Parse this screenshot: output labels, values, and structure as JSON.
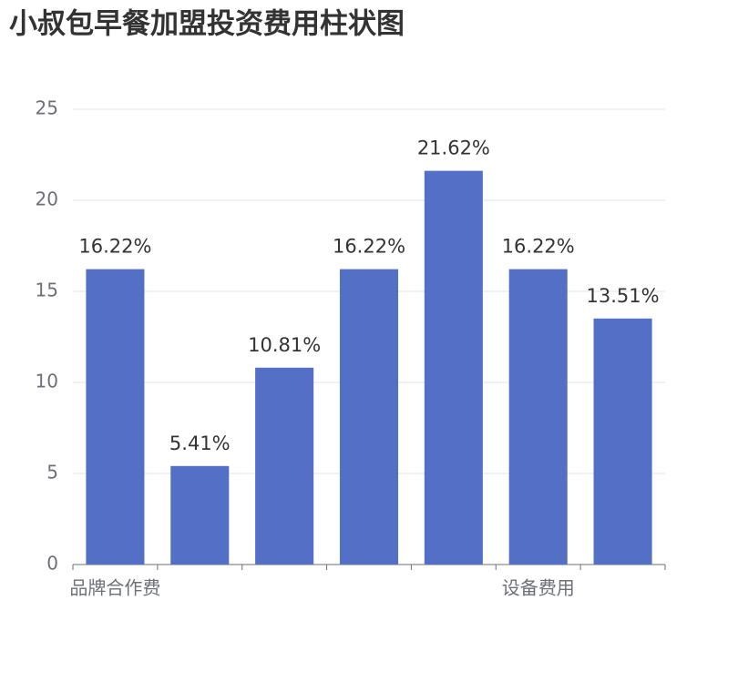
{
  "chart_data": {
    "type": "bar",
    "title": "小叔包早餐加盟投资费用柱状图",
    "categories": [
      "品牌合作费",
      null,
      null,
      null,
      null,
      "设备费用",
      null
    ],
    "values": [
      16.22,
      5.41,
      10.81,
      16.22,
      21.62,
      16.22,
      13.51
    ],
    "value_labels": [
      "16.22%",
      "5.41%",
      "10.81%",
      "16.22%",
      "21.62%",
      "16.22%",
      "13.51%"
    ],
    "color": "#5470c6",
    "ylim": [
      0,
      25
    ],
    "yticks": [
      0,
      5,
      10,
      15,
      20,
      25
    ],
    "grid": true
  }
}
